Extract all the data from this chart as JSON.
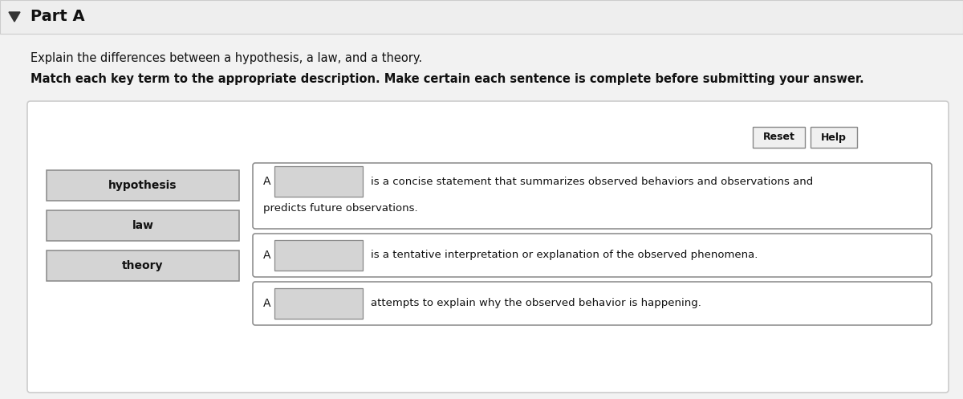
{
  "background_color": "#f2f2f2",
  "panel_bg": "#ffffff",
  "title": "Part A",
  "subtitle": "Explain the differences between a hypothesis, a law, and a theory.",
  "instruction": "Match each key term to the appropriate description. Make certain each sentence is complete before submitting your answer.",
  "terms": [
    "hypothesis",
    "law",
    "theory"
  ],
  "term_box_color": "#d4d4d4",
  "term_box_edge": "#888888",
  "answer_box_color": "#d4d4d4",
  "answer_box_edge": "#888888",
  "panel_edge": "#cccccc",
  "reset_label": "Reset",
  "help_label": "Help",
  "header_bg": "#eeeeee",
  "header_edge": "#cccccc",
  "sentences": [
    {
      "text_line1": "is a concise statement that summarizes observed behaviors and observations and",
      "text_line2": "predicts future observations.",
      "two_line": true
    },
    {
      "text_line1": "is a tentative interpretation or explanation of the observed phenomena.",
      "two_line": false
    },
    {
      "text_line1": "attempts to explain why the observed behavior is happening.",
      "two_line": false
    }
  ]
}
